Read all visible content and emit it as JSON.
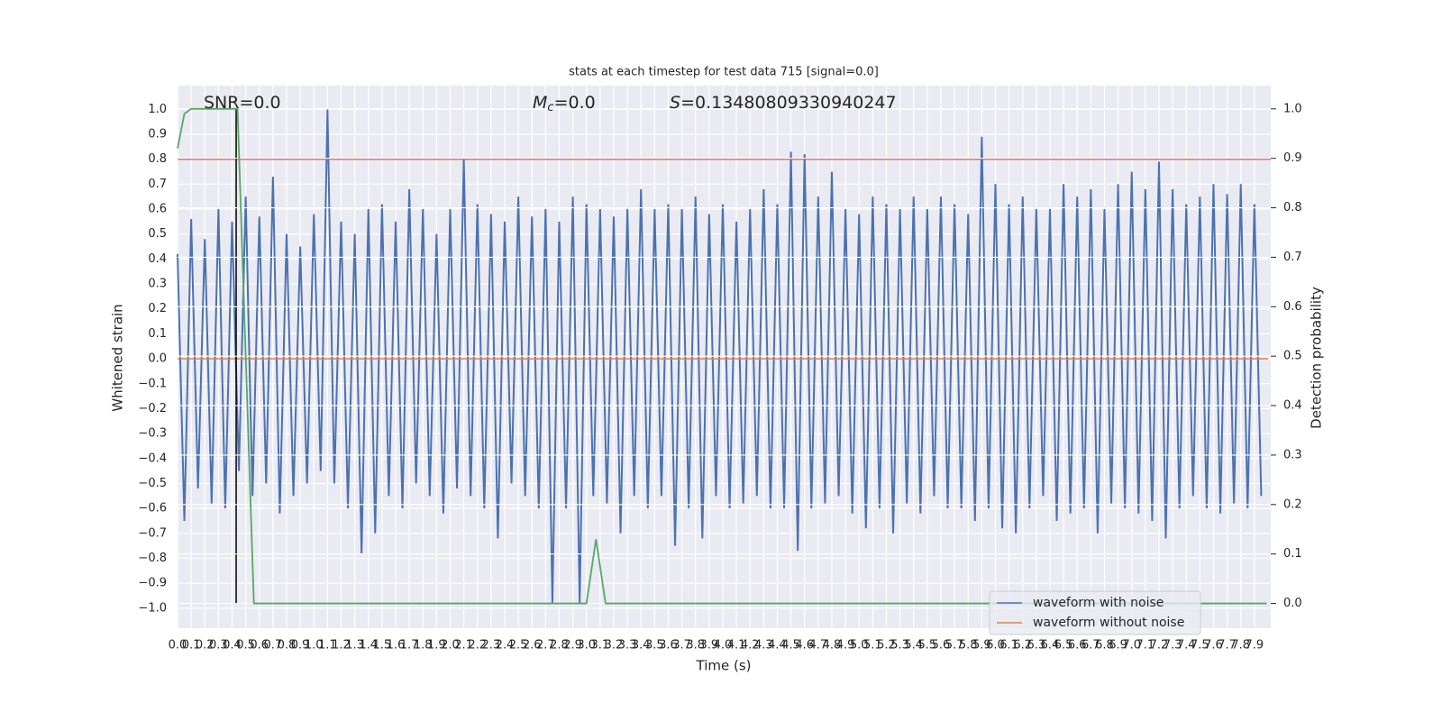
{
  "chart_data": {
    "type": "line",
    "title": "stats at each timestep for test data 715 [signal=0.0]",
    "xlabel": "Time (s)",
    "ylabel": "Whitened strain",
    "y2label": "Detection probability",
    "annotations": [
      {
        "text": "SNR=0.0"
      },
      {
        "symbol": "M",
        "subscript": "c",
        "text": "=0.0"
      },
      {
        "symbol": "S",
        "text": "=0.13480809330940247"
      }
    ],
    "xlim": [
      0,
      8.02
    ],
    "ylim": [
      -1.08,
      1.095
    ],
    "y2lim": [
      -0.05,
      1.047
    ],
    "grid": true,
    "xticks": [
      {
        "value": 0,
        "label": "0.0"
      },
      0.1,
      0.2,
      0.3,
      0.4,
      0.5,
      0.6,
      0.7,
      0.8,
      0.9,
      {
        "value": 1,
        "label": "1.0"
      },
      1.1,
      1.2,
      1.3,
      1.4,
      1.5,
      1.6,
      1.7,
      1.8,
      1.9,
      {
        "value": 2,
        "label": "2.0"
      },
      2.1,
      2.2,
      2.3,
      2.4,
      2.5,
      2.6,
      2.7,
      2.8,
      2.9,
      {
        "value": 3,
        "label": "3.0"
      },
      3.1,
      3.2,
      3.3,
      3.4,
      3.5,
      3.6,
      3.7,
      3.8,
      3.9,
      {
        "value": 4,
        "label": "4.0"
      },
      4.1,
      4.2,
      4.3,
      4.4,
      4.5,
      4.6,
      4.7,
      4.8,
      4.9,
      {
        "value": 5,
        "label": "5.0"
      },
      5.1,
      5.2,
      5.3,
      5.4,
      5.5,
      5.6,
      5.7,
      5.8,
      5.9,
      {
        "value": 6,
        "label": "6.0"
      },
      6.1,
      6.2,
      6.3,
      6.4,
      6.5,
      6.6,
      6.7,
      6.8,
      6.9,
      {
        "value": 7,
        "label": "7.0"
      },
      7.1,
      7.2,
      7.3,
      7.4,
      7.5,
      7.6,
      7.7,
      7.8,
      7.9
    ],
    "yticks": [
      {
        "value": -1,
        "label": "−1.0"
      },
      {
        "value": -0.9,
        "label": "−0.9"
      },
      {
        "value": -0.8,
        "label": "−0.8"
      },
      {
        "value": -0.7,
        "label": "−0.7"
      },
      {
        "value": -0.6,
        "label": "−0.6"
      },
      {
        "value": -0.5,
        "label": "−0.5"
      },
      {
        "value": -0.4,
        "label": "−0.4"
      },
      {
        "value": -0.3,
        "label": "−0.3"
      },
      {
        "value": -0.2,
        "label": "−0.2"
      },
      {
        "value": -0.1,
        "label": "−0.1"
      },
      {
        "value": 0,
        "label": "0.0"
      },
      0.1,
      0.2,
      0.3,
      0.4,
      0.5,
      0.6,
      0.7,
      0.8,
      0.9,
      {
        "value": 1,
        "label": "1.0"
      }
    ],
    "y2ticks": [
      {
        "value": 0,
        "label": "0.0"
      },
      0.1,
      0.2,
      0.3,
      0.4,
      0.5,
      0.6,
      0.7,
      0.8,
      0.9,
      {
        "value": 1,
        "label": "1.0"
      }
    ],
    "legend": "lower right",
    "series": [
      {
        "name": "waveform with noise",
        "color": "#4c72b0",
        "x": [
          0,
          0.05,
          0.1,
          0.15,
          0.2,
          0.25,
          0.3,
          0.35,
          0.4,
          0.45,
          0.5,
          0.55,
          0.6,
          0.65,
          0.7,
          0.75,
          0.8,
          0.85,
          0.9,
          0.95,
          1,
          1.05,
          1.1,
          1.15,
          1.2,
          1.25,
          1.3,
          1.35,
          1.4,
          1.45,
          1.5,
          1.55,
          1.6,
          1.65,
          1.7,
          1.75,
          1.8,
          1.85,
          1.9,
          1.95,
          2,
          2.05,
          2.1,
          2.15,
          2.2,
          2.25,
          2.3,
          2.35,
          2.4,
          2.45,
          2.5,
          2.55,
          2.6,
          2.65,
          2.7,
          2.75,
          2.8,
          2.85,
          2.9,
          2.95,
          3,
          3.05,
          3.1,
          3.15,
          3.2,
          3.25,
          3.3,
          3.35,
          3.4,
          3.45,
          3.5,
          3.55,
          3.6,
          3.65,
          3.7,
          3.75,
          3.8,
          3.85,
          3.9,
          3.95,
          4,
          4.05,
          4.1,
          4.15,
          4.2,
          4.25,
          4.3,
          4.35,
          4.4,
          4.45,
          4.5,
          4.55,
          4.6,
          4.65,
          4.7,
          4.75,
          4.8,
          4.85,
          4.9,
          4.95,
          5,
          5.05,
          5.1,
          5.15,
          5.2,
          5.25,
          5.3,
          5.35,
          5.4,
          5.45,
          5.5,
          5.55,
          5.6,
          5.65,
          5.7,
          5.75,
          5.8,
          5.85,
          5.9,
          5.95,
          6,
          6.05,
          6.1,
          6.15,
          6.2,
          6.25,
          6.3,
          6.35,
          6.4,
          6.45,
          6.5,
          6.55,
          6.6,
          6.65,
          6.7,
          6.75,
          6.8,
          6.85,
          6.9,
          6.95,
          7,
          7.05,
          7.1,
          7.15,
          7.2,
          7.25,
          7.3,
          7.35,
          7.4,
          7.45,
          7.5,
          7.55,
          7.6,
          7.65,
          7.7,
          7.75,
          7.8,
          7.85,
          7.9,
          7.95
        ],
        "values": [
          0.42,
          -0.65,
          0.56,
          -0.52,
          0.48,
          -0.58,
          0.6,
          -0.6,
          0.55,
          -0.45,
          0.65,
          -0.55,
          0.57,
          -0.5,
          0.73,
          -0.62,
          0.5,
          -0.55,
          0.45,
          -0.5,
          0.58,
          -0.45,
          1.0,
          -0.5,
          0.55,
          -0.6,
          0.5,
          -0.78,
          0.6,
          -0.7,
          0.62,
          -0.55,
          0.55,
          -0.6,
          0.68,
          -0.5,
          0.6,
          -0.55,
          0.5,
          -0.62,
          0.6,
          -0.52,
          0.8,
          -0.55,
          0.62,
          -0.6,
          0.58,
          -0.72,
          0.55,
          -0.5,
          0.65,
          -0.55,
          0.57,
          -0.6,
          0.6,
          -0.98,
          0.55,
          -0.6,
          0.65,
          -0.98,
          0.62,
          -0.55,
          0.6,
          -0.58,
          0.57,
          -0.7,
          0.6,
          -0.55,
          0.68,
          -0.6,
          0.6,
          -0.55,
          0.62,
          -0.75,
          0.6,
          -0.6,
          0.65,
          -0.72,
          0.58,
          -0.55,
          0.62,
          -0.6,
          0.55,
          -0.58,
          0.6,
          -0.55,
          0.68,
          -0.6,
          0.62,
          -0.6,
          0.83,
          -0.77,
          0.82,
          -0.6,
          0.65,
          -0.58,
          0.75,
          -0.55,
          0.6,
          -0.62,
          0.58,
          -0.68,
          0.65,
          -0.6,
          0.62,
          -0.7,
          0.6,
          -0.58,
          0.65,
          -0.62,
          0.6,
          -0.55,
          0.65,
          -0.6,
          0.62,
          -0.6,
          0.58,
          -0.65,
          0.89,
          -0.6,
          0.7,
          -0.68,
          0.62,
          -0.7,
          0.65,
          -0.6,
          0.6,
          -0.55,
          0.6,
          -0.65,
          0.7,
          -0.62,
          0.65,
          -0.6,
          0.68,
          -0.7,
          0.6,
          -0.58,
          0.7,
          -0.6,
          0.75,
          -0.62,
          0.68,
          -0.65,
          0.79,
          -0.72,
          0.68,
          -0.6,
          0.62,
          -0.55,
          0.65,
          -0.6,
          0.7,
          -0.62,
          0.66,
          -0.58,
          0.7,
          -0.6,
          0.62,
          -0.55
        ]
      },
      {
        "name": "waveform without noise",
        "color": "#dd8452",
        "x": [
          0,
          8.0
        ],
        "values": [
          0,
          0
        ]
      }
    ],
    "y2_series": {
      "axis": "y2",
      "color": "#55a868",
      "x": [
        0,
        0.05,
        0.1,
        0.44,
        0.56,
        3.0,
        3.07,
        3.14,
        7.99
      ],
      "values": [
        0.92,
        0.99,
        1.0,
        1.0,
        0.0,
        0.0,
        0.13,
        0.0,
        0.0
      ]
    },
    "hlines": [
      {
        "y": 0.8,
        "color": "#c44e52"
      }
    ],
    "vlines": [
      {
        "x": 0.43,
        "ymin": -0.98,
        "ymax": 1.0,
        "color": "#000000"
      }
    ]
  }
}
